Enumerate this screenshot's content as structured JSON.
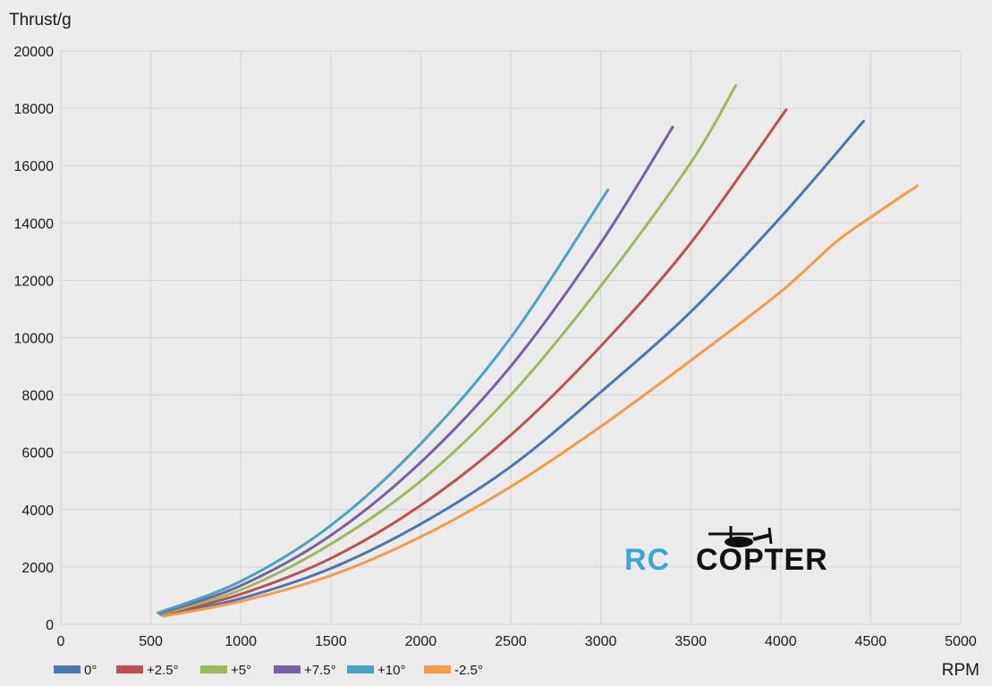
{
  "chart_data": {
    "type": "line",
    "ylabel": "Thrust/g",
    "xlabel": "RPM",
    "xlim": [
      0,
      5000
    ],
    "ylim": [
      0,
      20000
    ],
    "x_ticks": [
      0,
      500,
      1000,
      1500,
      2000,
      2500,
      3000,
      3500,
      4000,
      4500,
      5000
    ],
    "y_ticks": [
      0,
      2000,
      4000,
      6000,
      8000,
      10000,
      12000,
      14000,
      16000,
      18000,
      20000
    ],
    "grid": true,
    "legend_position": "bottom-left",
    "series": [
      {
        "name": "0°",
        "color": "#4a76b3",
        "points": [
          [
            560,
            320
          ],
          [
            1000,
            900
          ],
          [
            1500,
            1950
          ],
          [
            2000,
            3500
          ],
          [
            2500,
            5500
          ],
          [
            3000,
            8100
          ],
          [
            3500,
            10900
          ],
          [
            4000,
            14200
          ],
          [
            4460,
            17550
          ]
        ]
      },
      {
        "name": "+2.5°",
        "color": "#c0504d",
        "points": [
          [
            560,
            330
          ],
          [
            1000,
            1050
          ],
          [
            1500,
            2300
          ],
          [
            2000,
            4150
          ],
          [
            2500,
            6600
          ],
          [
            3000,
            9700
          ],
          [
            3500,
            13300
          ],
          [
            4030,
            17950
          ]
        ]
      },
      {
        "name": "+5°",
        "color": "#9bbb59",
        "points": [
          [
            550,
            350
          ],
          [
            1000,
            1200
          ],
          [
            1500,
            2800
          ],
          [
            2000,
            5000
          ],
          [
            2500,
            8000
          ],
          [
            3000,
            11800
          ],
          [
            3500,
            16100
          ],
          [
            3750,
            18800
          ]
        ]
      },
      {
        "name": "+7.5°",
        "color": "#7a5fa8",
        "points": [
          [
            550,
            380
          ],
          [
            1000,
            1350
          ],
          [
            1500,
            3100
          ],
          [
            2000,
            5650
          ],
          [
            2500,
            9000
          ],
          [
            3000,
            13300
          ],
          [
            3400,
            17350
          ]
        ]
      },
      {
        "name": "+10°",
        "color": "#46a5c4",
        "points": [
          [
            540,
            400
          ],
          [
            1000,
            1500
          ],
          [
            1500,
            3450
          ],
          [
            2000,
            6300
          ],
          [
            2500,
            10000
          ],
          [
            3040,
            15150
          ]
        ]
      },
      {
        "name": "-2.5°",
        "color": "#f59a45",
        "points": [
          [
            570,
            280
          ],
          [
            1000,
            800
          ],
          [
            1500,
            1700
          ],
          [
            2000,
            3050
          ],
          [
            2500,
            4800
          ],
          [
            3000,
            6900
          ],
          [
            3500,
            9200
          ],
          [
            4000,
            11600
          ],
          [
            4300,
            13300
          ],
          [
            4500,
            14200
          ],
          [
            4760,
            15300
          ]
        ]
      }
    ]
  },
  "watermark": {
    "part1": "RC",
    "part2": "COPTER"
  }
}
